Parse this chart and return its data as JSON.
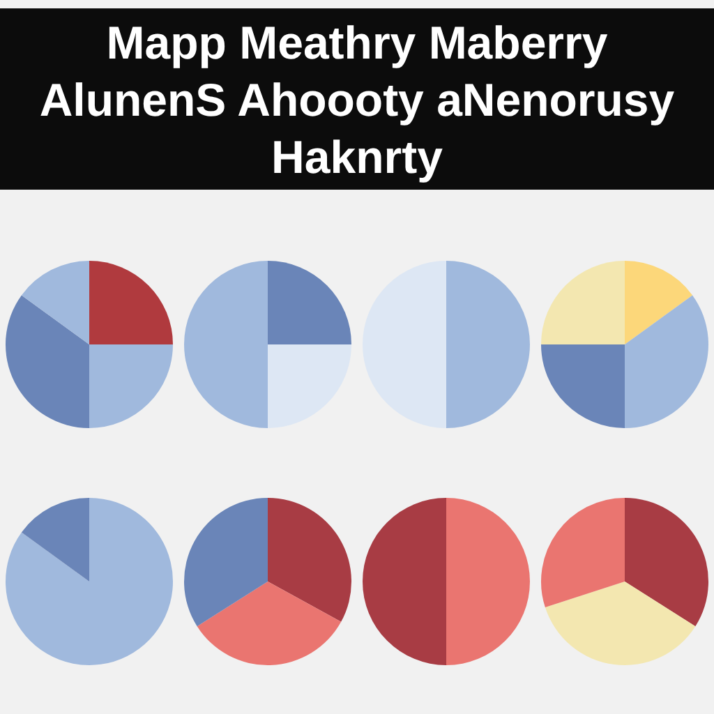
{
  "chart_data": [
    {
      "type": "pie",
      "title": "Mapp Meathry Maberry AlunenS Ahoooty aNenorusy Haknrty",
      "values": [
        25,
        25,
        35,
        15
      ],
      "colors": [
        "#b03a3e",
        "#a0b9dd",
        "#6a85b8",
        "#a0b9dd"
      ],
      "legend": false
    },
    {
      "type": "pie",
      "values": [
        25,
        25,
        50
      ],
      "colors": [
        "#6a85b8",
        "#dde7f4",
        "#a0b9dd"
      ],
      "legend": false
    },
    {
      "type": "pie",
      "values": [
        50,
        50
      ],
      "colors": [
        "#a0b9dd",
        "#dde7f4"
      ],
      "legend": false
    },
    {
      "type": "pie",
      "values": [
        15,
        35,
        25,
        25
      ],
      "colors": [
        "#fcd77a",
        "#a0b9dd",
        "#6a85b8",
        "#f3e7b0"
      ],
      "legend": false
    },
    {
      "type": "pie",
      "values": [
        85,
        15
      ],
      "colors": [
        "#a0b9dd",
        "#6a85b8"
      ],
      "legend": false
    },
    {
      "type": "pie",
      "values": [
        33,
        33,
        34
      ],
      "colors": [
        "#a83c44",
        "#ea7570",
        "#6a85b8"
      ],
      "legend": false
    },
    {
      "type": "pie",
      "values": [
        50,
        50
      ],
      "colors": [
        "#ea7570",
        "#a83c44"
      ],
      "legend": false
    },
    {
      "type": "pie",
      "values": [
        34,
        36,
        30
      ],
      "colors": [
        "#a83c44",
        "#f3e7b0",
        "#ea7570"
      ],
      "legend": false
    }
  ]
}
